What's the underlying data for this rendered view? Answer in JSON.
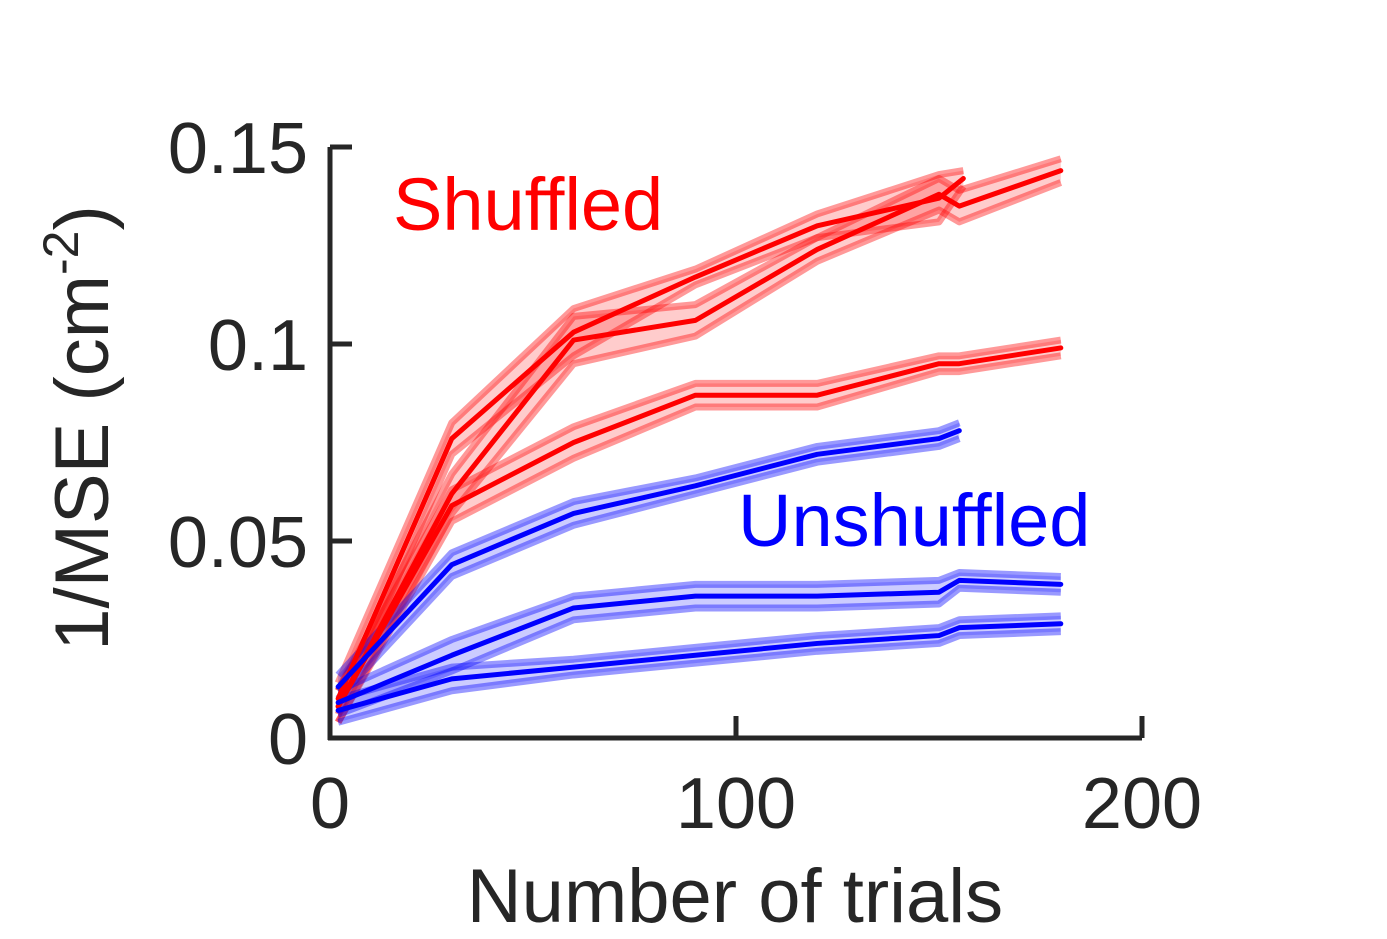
{
  "chart_data": {
    "type": "line",
    "xlabel": "Number of trials",
    "ylabel": "1/MSE (cm",
    "ylabel_exp": "-2",
    "ylabel_close": ")",
    "xlim": [
      0,
      200
    ],
    "ylim": [
      0,
      0.15
    ],
    "xticks": [
      0,
      100,
      200
    ],
    "xtick_labels": [
      "0",
      "100",
      "200"
    ],
    "yticks": [
      0,
      0.05,
      0.1,
      0.15
    ],
    "ytick_labels": [
      "0",
      "0.05",
      "0.1",
      "0.15"
    ],
    "grid": false,
    "annotations": [
      {
        "text": "Shuffled",
        "color": "#ff0000"
      },
      {
        "text": "Unshuffled",
        "color": "#0000ff"
      }
    ],
    "colors": {
      "shuffled": "#ff0000",
      "unshuffled": "#0000ff",
      "axis": "#262626"
    },
    "series": [
      {
        "group": "shuffled",
        "x": [
          2,
          30,
          60,
          90,
          120,
          150,
          156
        ],
        "y": [
          0.01,
          0.076,
          0.103,
          0.117,
          0.13,
          0.137,
          0.142
        ],
        "err": [
          0.004,
          0.004,
          0.006,
          0.002,
          0.003,
          0.006,
          0.002
        ]
      },
      {
        "group": "shuffled",
        "x": [
          2,
          30,
          60,
          90,
          120,
          150,
          155,
          180
        ],
        "y": [
          0.008,
          0.062,
          0.101,
          0.106,
          0.124,
          0.138,
          0.135,
          0.144
        ],
        "err": [
          0.004,
          0.005,
          0.006,
          0.004,
          0.003,
          0.004,
          0.004,
          0.003
        ]
      },
      {
        "group": "shuffled",
        "x": [
          2,
          30,
          60,
          90,
          120,
          150,
          155,
          180
        ],
        "y": [
          0.008,
          0.059,
          0.075,
          0.087,
          0.087,
          0.095,
          0.095,
          0.099
        ],
        "err": [
          0.004,
          0.004,
          0.004,
          0.003,
          0.003,
          0.002,
          0.002,
          0.002
        ]
      },
      {
        "group": "unshuffled",
        "x": [
          2,
          30,
          60,
          90,
          120,
          150,
          155
        ],
        "y": [
          0.013,
          0.044,
          0.057,
          0.064,
          0.072,
          0.076,
          0.078
        ],
        "err": [
          0.003,
          0.003,
          0.003,
          0.002,
          0.002,
          0.002,
          0.002
        ]
      },
      {
        "group": "unshuffled",
        "x": [
          2,
          30,
          60,
          90,
          120,
          150,
          155,
          180
        ],
        "y": [
          0.009,
          0.021,
          0.033,
          0.036,
          0.036,
          0.037,
          0.04,
          0.039
        ],
        "err": [
          0.003,
          0.004,
          0.003,
          0.003,
          0.003,
          0.003,
          0.002,
          0.002
        ]
      },
      {
        "group": "unshuffled",
        "x": [
          2,
          30,
          60,
          90,
          120,
          150,
          155,
          180
        ],
        "y": [
          0.007,
          0.015,
          0.018,
          0.021,
          0.024,
          0.026,
          0.028,
          0.029
        ],
        "err": [
          0.003,
          0.003,
          0.002,
          0.002,
          0.002,
          0.002,
          0.002,
          0.002
        ]
      }
    ]
  }
}
